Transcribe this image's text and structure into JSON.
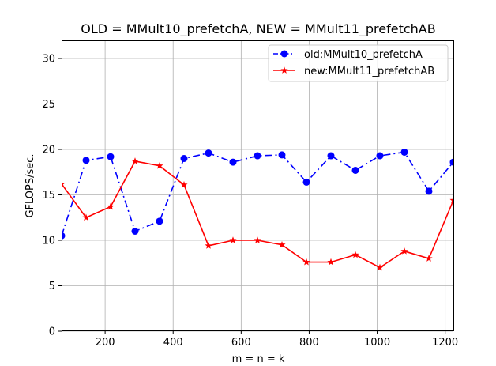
{
  "chart_data": {
    "type": "line",
    "title": "OLD = MMult10_prefetchA, NEW = MMult11_prefetchAB",
    "xlabel": "m = n = k",
    "ylabel": "GFLOPS/sec.",
    "xlim": [
      72,
      1224
    ],
    "ylim": [
      0,
      32
    ],
    "xticks": [
      200,
      400,
      600,
      800,
      1000,
      1200
    ],
    "yticks": [
      0,
      5,
      10,
      15,
      20,
      25,
      30
    ],
    "grid": true,
    "legend_position": "top-right",
    "x": [
      72,
      144,
      216,
      288,
      360,
      432,
      504,
      576,
      648,
      720,
      792,
      864,
      936,
      1008,
      1080,
      1152,
      1224
    ],
    "series": [
      {
        "name": "old:MMult10_prefetchA",
        "color": "#0000ff",
        "linestyle": "dashdot",
        "marker": "circle",
        "values": [
          10.5,
          18.8,
          19.2,
          11.0,
          12.1,
          19.0,
          19.6,
          18.6,
          19.3,
          19.4,
          16.4,
          19.3,
          17.7,
          19.3,
          19.7,
          15.4,
          18.6
        ]
      },
      {
        "name": "new:MMult11_prefetchAB",
        "color": "#ff0000",
        "linestyle": "solid",
        "marker": "star",
        "values": [
          16.2,
          12.5,
          13.7,
          18.7,
          18.2,
          16.1,
          9.4,
          10.0,
          10.0,
          9.5,
          7.6,
          7.6,
          8.4,
          7.0,
          8.8,
          8.0,
          14.4
        ]
      }
    ]
  }
}
